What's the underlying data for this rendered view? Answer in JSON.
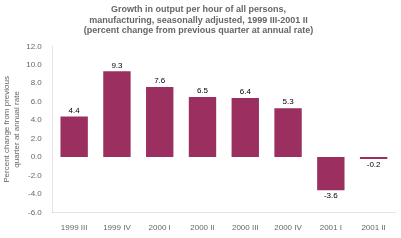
{
  "chart_data": {
    "type": "bar",
    "title": "Growth in output per hour of all persons,\nmanufacturing, seasonally adjusted, 1999 III-2001 II\n(percent change from previous quarter at annual rate)",
    "ylabel": "Percent change from previous\nquarter at annual rate",
    "categories": [
      "1999 III",
      "1999 IV",
      "2000 I",
      "2000 II",
      "2000 III",
      "2000 IV",
      "2001 I",
      "2001 II"
    ],
    "values": [
      4.4,
      9.3,
      7.6,
      6.5,
      6.4,
      5.3,
      -3.6,
      -0.2
    ],
    "color": "#9B3060",
    "ylim": [
      -6.0,
      12.0
    ],
    "yticks": [
      {
        "value": -6,
        "label": "-6.0"
      },
      {
        "value": -4,
        "label": "-4.0"
      },
      {
        "value": -2,
        "label": "-2.0"
      },
      {
        "value": 0,
        "label": "0.0"
      },
      {
        "value": 2,
        "label": "2.0"
      },
      {
        "value": 4,
        "label": "4.0"
      },
      {
        "value": 6,
        "label": "6.0"
      },
      {
        "value": 8,
        "label": "8.0"
      },
      {
        "value": 10,
        "label": "10.0"
      },
      {
        "value": 12,
        "label": "12.0"
      }
    ],
    "grid": false,
    "data_labels": true
  }
}
